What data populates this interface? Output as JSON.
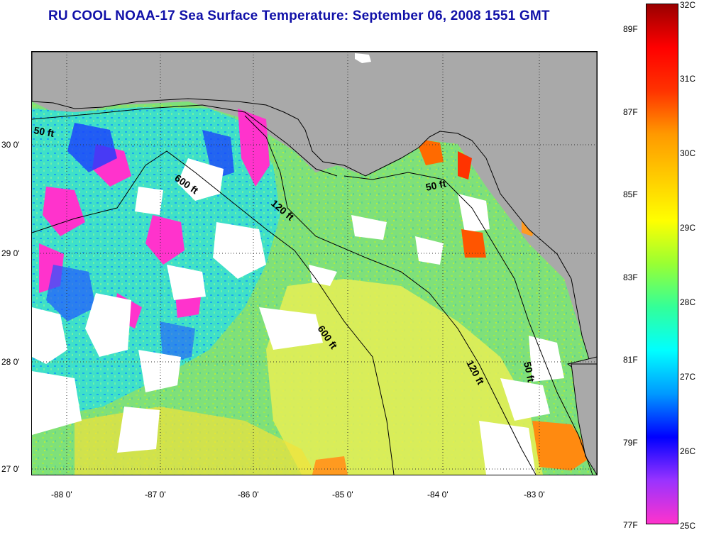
{
  "title": "RU COOL  NOAA-17  Sea Surface Temperature:  September 06, 2008 1551 GMT",
  "map": {
    "longitude_ticks": [
      "-88 0'",
      "-87 0'",
      "-86 0'",
      "-85 0'",
      "-84 0'",
      "-83 0'"
    ],
    "latitude_ticks": [
      "30 0'",
      "29 0'",
      "28 0'",
      "27 0'"
    ],
    "contour_labels": [
      "50 ft",
      "600 ft",
      "120 ft",
      "50 ft",
      "600 ft",
      "120 ft",
      "50 ft"
    ],
    "land_color": "#a9a9a9",
    "cloud_color": "#ffffff"
  },
  "colorbar": {
    "celsius_labels": [
      "32C",
      "31C",
      "30C",
      "29C",
      "28C",
      "27C",
      "26C",
      "25C"
    ],
    "fahrenheit_labels": [
      "89F",
      "87F",
      "85F",
      "83F",
      "81F",
      "79F",
      "77F"
    ],
    "colors": [
      "#ff33cc",
      "#9933ff",
      "#0000ff",
      "#0099ff",
      "#00ffff",
      "#33ff99",
      "#99ff33",
      "#ffff00",
      "#ffcc00",
      "#ff9900",
      "#ff3300",
      "#ff0000",
      "#990000"
    ]
  }
}
